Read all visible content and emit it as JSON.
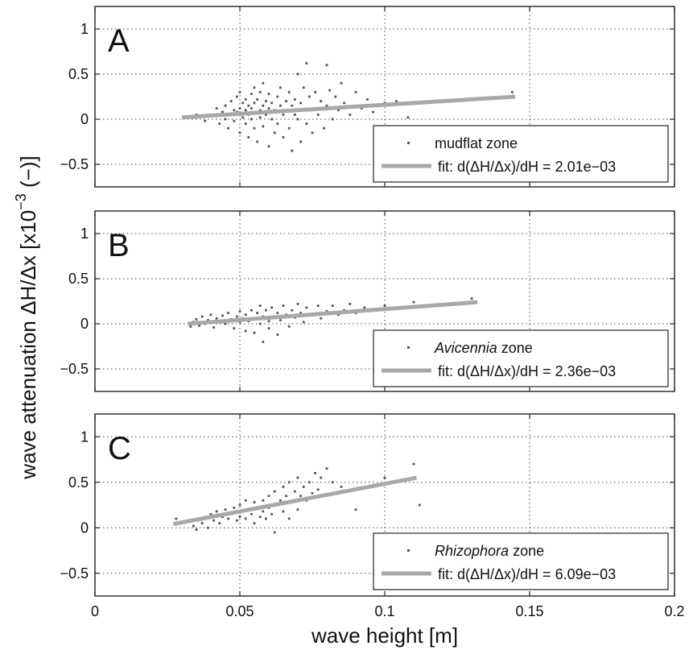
{
  "figure": {
    "xlabel": "wave height [m]",
    "ylabel_main": "wave attenuation  ΔH/Δx [x10",
    "ylabel_exp": "−3",
    "ylabel_tail": " (−)]",
    "x_ticks": [
      "0",
      "0.05",
      "0.1",
      "0.15",
      "0.2"
    ],
    "y_ticks": [
      "1",
      "0.5",
      "0",
      "−0.5"
    ]
  },
  "chart_data": [
    {
      "type": "scatter",
      "panel_letter": "A",
      "xlim": [
        0,
        0.2
      ],
      "ylim": [
        -0.75,
        1.25
      ],
      "grid": true,
      "legend_position": "bottom-right",
      "legend_name_plain": "mudflat",
      "legend_name_italic": "",
      "legend_suffix": " zone",
      "fit_label": "fit: d(ΔH/Δx)/dH = 2.01e−03",
      "fit_line": {
        "x": [
          0.03,
          0.145
        ],
        "y": [
          0.02,
          0.25
        ]
      },
      "colors": {
        "points": "#555555",
        "fit": "#a8a8a8"
      },
      "points": [
        [
          0.032,
          0.02
        ],
        [
          0.035,
          0.05
        ],
        [
          0.038,
          -0.02
        ],
        [
          0.04,
          0.03
        ],
        [
          0.042,
          0.12
        ],
        [
          0.043,
          -0.05
        ],
        [
          0.044,
          0.08
        ],
        [
          0.045,
          0.15
        ],
        [
          0.045,
          0.0
        ],
        [
          0.046,
          -0.1
        ],
        [
          0.047,
          0.2
        ],
        [
          0.047,
          0.05
        ],
        [
          0.048,
          -0.02
        ],
        [
          0.048,
          0.1
        ],
        [
          0.049,
          0.25
        ],
        [
          0.049,
          0.08
        ],
        [
          0.05,
          -0.15
        ],
        [
          0.05,
          0.12
        ],
        [
          0.05,
          0.3
        ],
        [
          0.051,
          0.02
        ],
        [
          0.051,
          0.18
        ],
        [
          0.052,
          -0.05
        ],
        [
          0.052,
          0.22
        ],
        [
          0.052,
          0.1
        ],
        [
          0.053,
          -0.2
        ],
        [
          0.053,
          0.15
        ],
        [
          0.053,
          0.05
        ],
        [
          0.054,
          0.28
        ],
        [
          0.054,
          0.0
        ],
        [
          0.054,
          0.12
        ],
        [
          0.055,
          -0.1
        ],
        [
          0.055,
          0.35
        ],
        [
          0.055,
          0.18
        ],
        [
          0.056,
          0.08
        ],
        [
          0.056,
          -0.25
        ],
        [
          0.056,
          0.22
        ],
        [
          0.057,
          0.1
        ],
        [
          0.057,
          0.02
        ],
        [
          0.057,
          0.3
        ],
        [
          0.058,
          -0.08
        ],
        [
          0.058,
          0.15
        ],
        [
          0.058,
          0.4
        ],
        [
          0.059,
          0.05
        ],
        [
          0.059,
          0.2
        ],
        [
          0.06,
          -0.3
        ],
        [
          0.06,
          0.12
        ],
        [
          0.06,
          0.28
        ],
        [
          0.061,
          0.0
        ],
        [
          0.061,
          0.18
        ],
        [
          0.062,
          -0.15
        ],
        [
          0.062,
          0.1
        ],
        [
          0.063,
          0.25
        ],
        [
          0.063,
          -0.05
        ],
        [
          0.064,
          0.15
        ],
        [
          0.064,
          0.35
        ],
        [
          0.065,
          -0.2
        ],
        [
          0.065,
          0.05
        ],
        [
          0.066,
          0.2
        ],
        [
          0.066,
          0.1
        ],
        [
          0.067,
          -0.1
        ],
        [
          0.067,
          0.3
        ],
        [
          0.068,
          0.15
        ],
        [
          0.068,
          -0.35
        ],
        [
          0.069,
          0.05
        ],
        [
          0.069,
          0.22
        ],
        [
          0.07,
          0.5
        ],
        [
          0.07,
          0.0
        ],
        [
          0.071,
          0.18
        ],
        [
          0.071,
          -0.25
        ],
        [
          0.072,
          0.1
        ],
        [
          0.072,
          0.35
        ],
        [
          0.073,
          0.62
        ],
        [
          0.073,
          -0.05
        ],
        [
          0.074,
          0.25
        ],
        [
          0.075,
          0.1
        ],
        [
          0.075,
          -0.15
        ],
        [
          0.076,
          0.3
        ],
        [
          0.077,
          0.05
        ],
        [
          0.078,
          0.2
        ],
        [
          0.079,
          -0.1
        ],
        [
          0.08,
          0.6
        ],
        [
          0.08,
          0.15
        ],
        [
          0.081,
          0.32
        ],
        [
          0.082,
          0.0
        ],
        [
          0.083,
          0.25
        ],
        [
          0.084,
          0.1
        ],
        [
          0.085,
          0.4
        ],
        [
          0.086,
          0.18
        ],
        [
          0.088,
          0.05
        ],
        [
          0.09,
          0.3
        ],
        [
          0.092,
          0.12
        ],
        [
          0.094,
          0.22
        ],
        [
          0.096,
          0.08
        ],
        [
          0.1,
          0.18
        ],
        [
          0.104,
          0.2
        ],
        [
          0.108,
          0.02
        ],
        [
          0.144,
          0.3
        ]
      ]
    },
    {
      "type": "scatter",
      "panel_letter": "B",
      "xlim": [
        0,
        0.2
      ],
      "ylim": [
        -0.75,
        1.25
      ],
      "grid": true,
      "legend_position": "bottom-right",
      "legend_name_plain": "",
      "legend_name_italic": "Avicennia",
      "legend_suffix": " zone",
      "fit_label": "fit: d(ΔH/Δx)/dH = 2.36e−03",
      "fit_line": {
        "x": [
          0.032,
          0.132
        ],
        "y": [
          0.0,
          0.24
        ]
      },
      "colors": {
        "points": "#555555",
        "fit": "#a8a8a8"
      },
      "points": [
        [
          0.033,
          -0.03
        ],
        [
          0.034,
          0.02
        ],
        [
          0.035,
          0.05
        ],
        [
          0.036,
          -0.02
        ],
        [
          0.037,
          0.08
        ],
        [
          0.038,
          0.0
        ],
        [
          0.039,
          0.04
        ],
        [
          0.04,
          0.1
        ],
        [
          0.041,
          -0.04
        ],
        [
          0.042,
          0.06
        ],
        [
          0.043,
          0.02
        ],
        [
          0.044,
          0.09
        ],
        [
          0.045,
          0.0
        ],
        [
          0.046,
          0.12
        ],
        [
          0.047,
          0.05
        ],
        [
          0.048,
          -0.05
        ],
        [
          0.049,
          0.08
        ],
        [
          0.05,
          0.02
        ],
        [
          0.05,
          0.14
        ],
        [
          0.051,
          0.06
        ],
        [
          0.052,
          -0.08
        ],
        [
          0.052,
          0.1
        ],
        [
          0.053,
          0.03
        ],
        [
          0.054,
          0.15
        ],
        [
          0.055,
          0.05
        ],
        [
          0.055,
          -0.1
        ],
        [
          0.056,
          0.12
        ],
        [
          0.057,
          0.0
        ],
        [
          0.057,
          0.2
        ],
        [
          0.058,
          -0.2
        ],
        [
          0.058,
          0.08
        ],
        [
          0.059,
          0.15
        ],
        [
          0.06,
          0.03
        ],
        [
          0.06,
          -0.05
        ],
        [
          0.061,
          0.18
        ],
        [
          0.062,
          0.08
        ],
        [
          0.063,
          0.12
        ],
        [
          0.063,
          -0.12
        ],
        [
          0.064,
          0.04
        ],
        [
          0.065,
          0.2
        ],
        [
          0.066,
          0.1
        ],
        [
          0.067,
          -0.03
        ],
        [
          0.068,
          0.15
        ],
        [
          0.069,
          0.07
        ],
        [
          0.07,
          0.22
        ],
        [
          0.071,
          0.12
        ],
        [
          0.072,
          0.02
        ],
        [
          0.073,
          0.18
        ],
        [
          0.075,
          0.1
        ],
        [
          0.077,
          0.2
        ],
        [
          0.078,
          0.06
        ],
        [
          0.08,
          0.14
        ],
        [
          0.082,
          0.2
        ],
        [
          0.084,
          0.1
        ],
        [
          0.086,
          0.15
        ],
        [
          0.088,
          0.22
        ],
        [
          0.09,
          0.12
        ],
        [
          0.093,
          0.18
        ],
        [
          0.096,
          0.16
        ],
        [
          0.1,
          0.2
        ],
        [
          0.11,
          0.24
        ],
        [
          0.13,
          0.28
        ]
      ]
    },
    {
      "type": "scatter",
      "panel_letter": "C",
      "xlim": [
        0,
        0.2
      ],
      "ylim": [
        -0.75,
        1.25
      ],
      "grid": true,
      "legend_position": "bottom-right",
      "legend_name_plain": "",
      "legend_name_italic": "Rhizophora",
      "legend_suffix": " zone",
      "fit_label": "fit: d(ΔH/Δx)/dH = 6.09e−03",
      "fit_line": {
        "x": [
          0.027,
          0.111
        ],
        "y": [
          0.04,
          0.55
        ]
      },
      "colors": {
        "points": "#555555",
        "fit": "#a8a8a8"
      },
      "points": [
        [
          0.028,
          0.1
        ],
        [
          0.03,
          0.05
        ],
        [
          0.032,
          0.08
        ],
        [
          0.034,
          0.02
        ],
        [
          0.035,
          -0.02
        ],
        [
          0.036,
          0.1
        ],
        [
          0.037,
          0.05
        ],
        [
          0.038,
          0.12
        ],
        [
          0.039,
          0.0
        ],
        [
          0.04,
          0.15
        ],
        [
          0.041,
          0.08
        ],
        [
          0.042,
          0.18
        ],
        [
          0.043,
          0.05
        ],
        [
          0.044,
          0.12
        ],
        [
          0.045,
          0.2
        ],
        [
          0.046,
          0.1
        ],
        [
          0.047,
          0.15
        ],
        [
          0.048,
          0.22
        ],
        [
          0.049,
          0.08
        ],
        [
          0.05,
          0.25
        ],
        [
          0.05,
          0.12
        ],
        [
          0.051,
          0.18
        ],
        [
          0.052,
          0.3
        ],
        [
          0.052,
          0.1
        ],
        [
          0.053,
          0.2
        ],
        [
          0.054,
          0.15
        ],
        [
          0.055,
          0.28
        ],
        [
          0.055,
          0.05
        ],
        [
          0.056,
          0.22
        ],
        [
          0.057,
          0.12
        ],
        [
          0.058,
          0.3
        ],
        [
          0.058,
          0.18
        ],
        [
          0.059,
          0.1
        ],
        [
          0.06,
          0.35
        ],
        [
          0.06,
          0.22
        ],
        [
          0.061,
          0.15
        ],
        [
          0.062,
          0.4
        ],
        [
          0.062,
          -0.05
        ],
        [
          0.063,
          0.25
        ],
        [
          0.064,
          0.3
        ],
        [
          0.065,
          0.45
        ],
        [
          0.065,
          0.18
        ],
        [
          0.066,
          0.35
        ],
        [
          0.067,
          0.5
        ],
        [
          0.067,
          0.1
        ],
        [
          0.068,
          0.28
        ],
        [
          0.069,
          0.4
        ],
        [
          0.07,
          0.55
        ],
        [
          0.07,
          0.2
        ],
        [
          0.071,
          0.35
        ],
        [
          0.072,
          0.45
        ],
        [
          0.073,
          0.3
        ],
        [
          0.074,
          0.5
        ],
        [
          0.075,
          0.38
        ],
        [
          0.076,
          0.6
        ],
        [
          0.077,
          0.42
        ],
        [
          0.078,
          0.55
        ],
        [
          0.08,
          0.65
        ],
        [
          0.082,
          0.5
        ],
        [
          0.085,
          0.45
        ],
        [
          0.09,
          0.2
        ],
        [
          0.1,
          0.55
        ],
        [
          0.11,
          0.7
        ],
        [
          0.112,
          0.25
        ]
      ]
    }
  ]
}
